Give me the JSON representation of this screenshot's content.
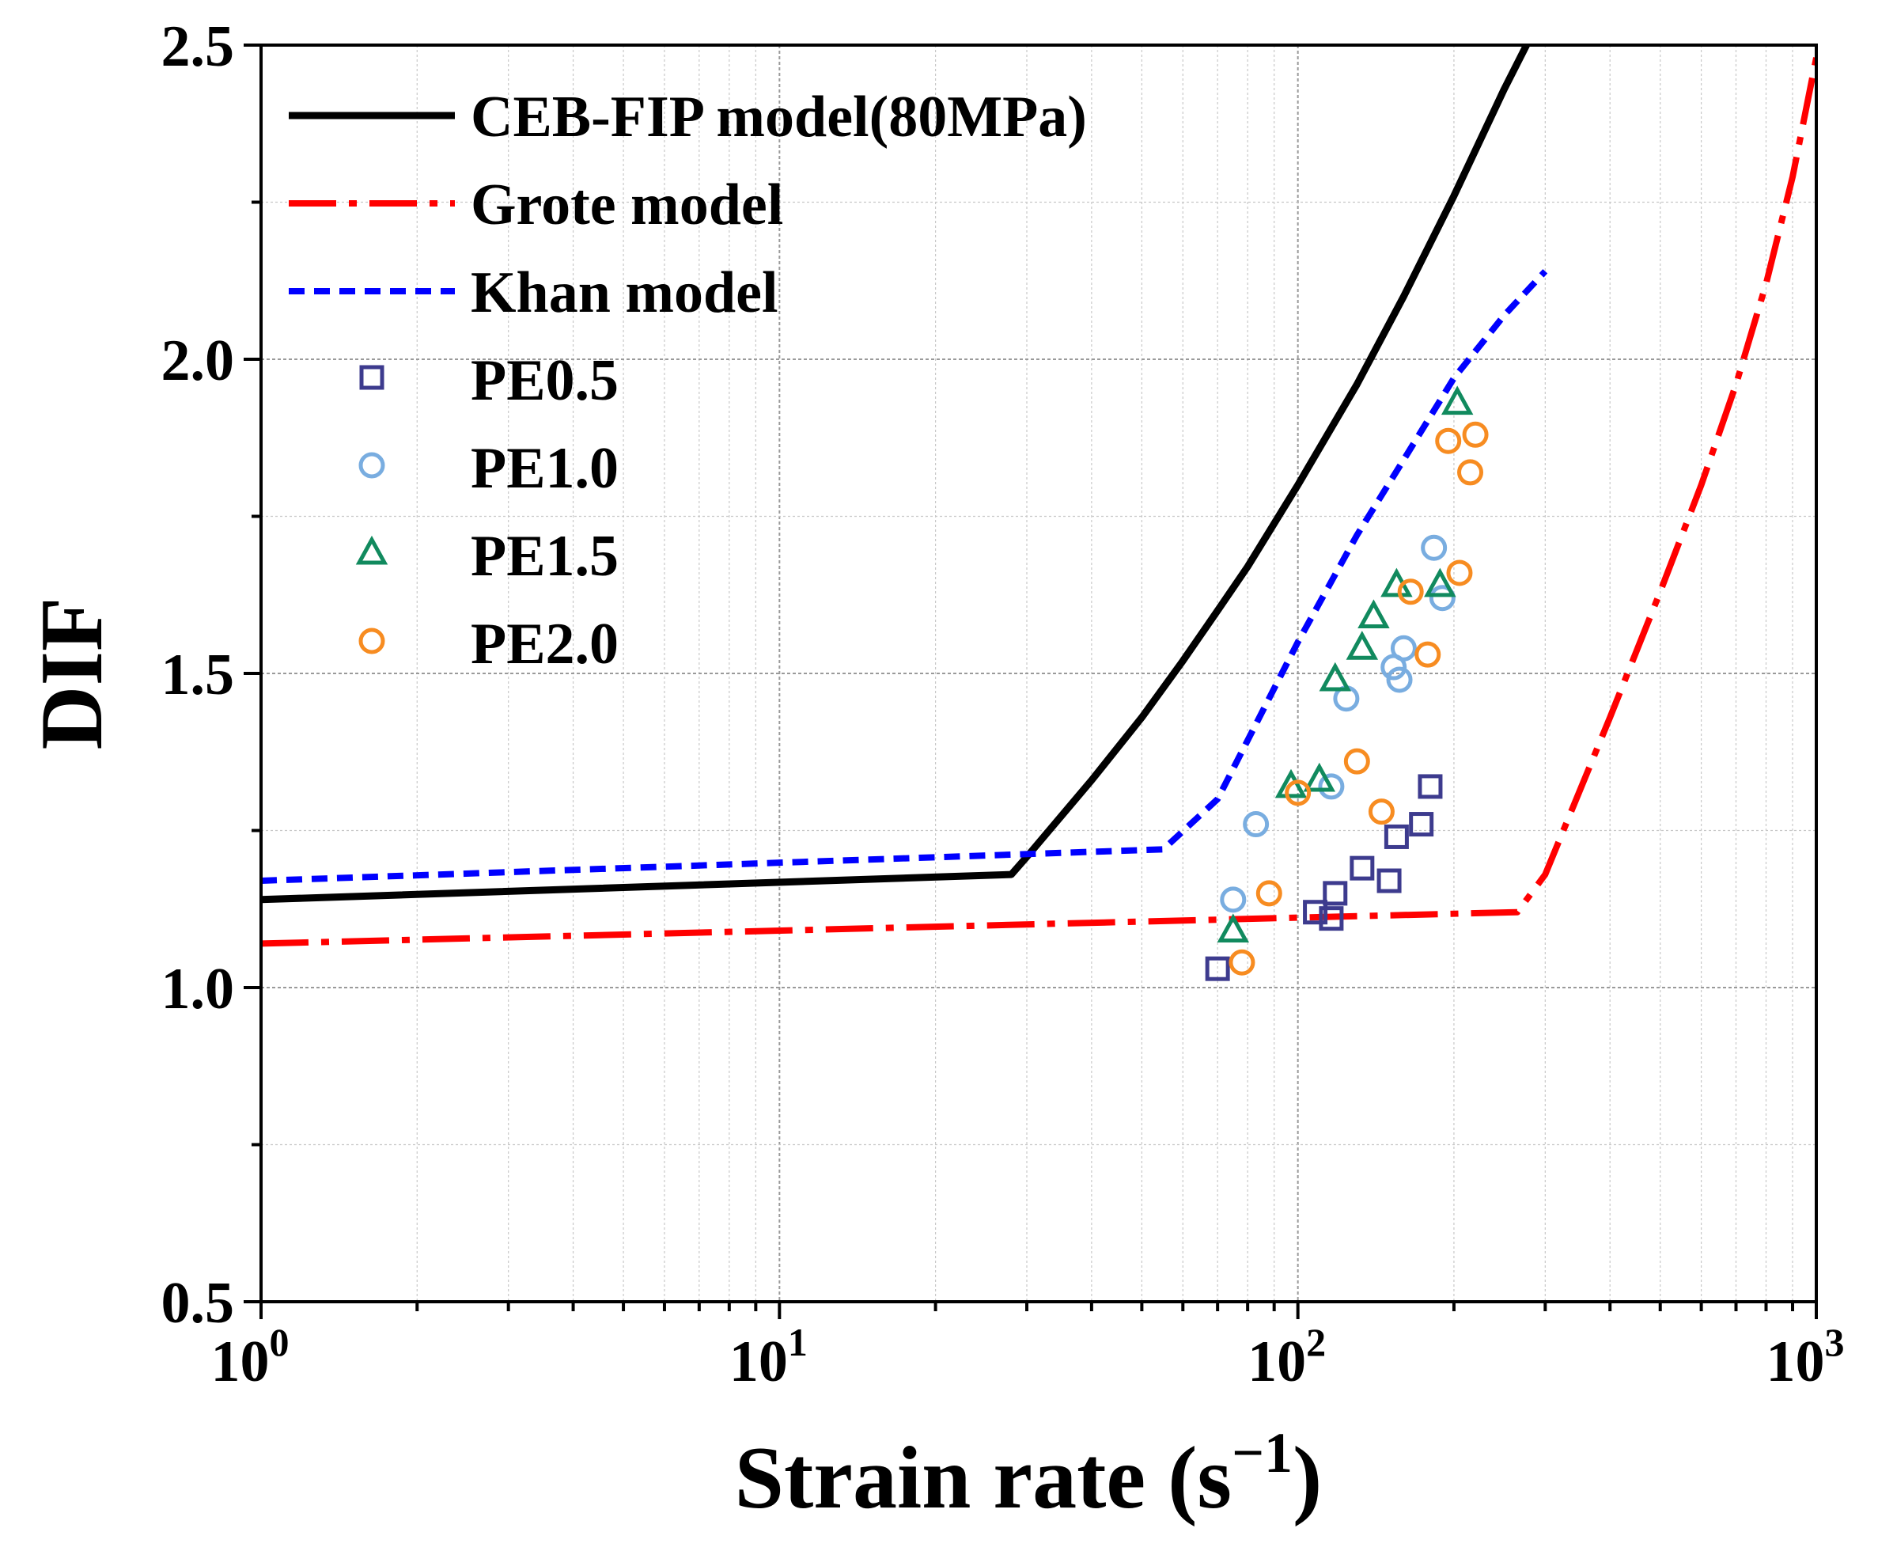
{
  "chart_data": {
    "type": "scatter",
    "xscale": "log",
    "xlim": [
      1,
      1000
    ],
    "ylim": [
      0.5,
      2.5
    ],
    "xlabel": "Strain rate (s",
    "xlabel_sup": "−1",
    "xlabel_end": ")",
    "ylabel": "DIF",
    "x_ticks": [
      {
        "base": "10",
        "exp": "0",
        "value": 1
      },
      {
        "base": "10",
        "exp": "1",
        "value": 10
      },
      {
        "base": "10",
        "exp": "2",
        "value": 100
      },
      {
        "base": "10",
        "exp": "3",
        "value": 1000
      }
    ],
    "y_ticks": [
      {
        "label": "0.5",
        "value": 0.5
      },
      {
        "label": "1.0",
        "value": 1.0
      },
      {
        "label": "1.5",
        "value": 1.5
      },
      {
        "label": "2.0",
        "value": 2.0
      },
      {
        "label": "2.5",
        "value": 2.5
      }
    ],
    "grid": true,
    "legend_position": "top-left",
    "lines": [
      {
        "name": "CEB-FIP model(80MPa)",
        "color": "#000000",
        "style": "solid",
        "points": [
          [
            1,
            1.14
          ],
          [
            28,
            1.18
          ],
          [
            30,
            1.208
          ],
          [
            40,
            1.33
          ],
          [
            50,
            1.43
          ],
          [
            60,
            1.52
          ],
          [
            70,
            1.6
          ],
          [
            80,
            1.67
          ],
          [
            100,
            1.8
          ],
          [
            130,
            1.96
          ],
          [
            160,
            2.1
          ],
          [
            200,
            2.26
          ],
          [
            250,
            2.43
          ],
          [
            280,
            2.51
          ]
        ]
      },
      {
        "name": "Grote model",
        "color": "#ff0000",
        "style": "dashdot",
        "points": [
          [
            1,
            1.07
          ],
          [
            265,
            1.12
          ],
          [
            300,
            1.18
          ],
          [
            400,
            1.43
          ],
          [
            500,
            1.63
          ],
          [
            600,
            1.8
          ],
          [
            700,
            1.96
          ],
          [
            800,
            2.12
          ],
          [
            900,
            2.29
          ],
          [
            1000,
            2.48
          ]
        ]
      },
      {
        "name": "Khan model",
        "color": "#0000ff",
        "style": "dashed",
        "points": [
          [
            1,
            1.17
          ],
          [
            55,
            1.22
          ],
          [
            70,
            1.3
          ],
          [
            100,
            1.55
          ],
          [
            130,
            1.72
          ],
          [
            160,
            1.84
          ],
          [
            200,
            1.97
          ],
          [
            250,
            2.07
          ],
          [
            300,
            2.14
          ]
        ]
      }
    ],
    "series": [
      {
        "name": "PE0.5",
        "marker": "square",
        "color": "#3d3b8e",
        "points": [
          [
            70,
            1.03
          ],
          [
            108,
            1.12
          ],
          [
            116,
            1.11
          ],
          [
            118,
            1.15
          ],
          [
            133,
            1.19
          ],
          [
            150,
            1.17
          ],
          [
            155,
            1.24
          ],
          [
            173,
            1.26
          ],
          [
            180,
            1.32
          ]
        ]
      },
      {
        "name": "PE1.0",
        "marker": "circle",
        "color": "#79ade0",
        "points": [
          [
            75,
            1.14
          ],
          [
            83,
            1.26
          ],
          [
            116,
            1.32
          ],
          [
            124,
            1.46
          ],
          [
            153,
            1.51
          ],
          [
            157,
            1.49
          ],
          [
            160,
            1.54
          ],
          [
            183,
            1.7
          ],
          [
            190,
            1.62
          ]
        ]
      },
      {
        "name": "PE1.5",
        "marker": "triangle",
        "color": "#118a5e",
        "points": [
          [
            75,
            1.09
          ],
          [
            97,
            1.32
          ],
          [
            110,
            1.33
          ],
          [
            118,
            1.49
          ],
          [
            133,
            1.54
          ],
          [
            140,
            1.59
          ],
          [
            155,
            1.64
          ],
          [
            188,
            1.64
          ],
          [
            203,
            1.93
          ]
        ]
      },
      {
        "name": "PE2.0",
        "marker": "circle",
        "color": "#f78c21",
        "points": [
          [
            78,
            1.04
          ],
          [
            88,
            1.15
          ],
          [
            100,
            1.31
          ],
          [
            130,
            1.36
          ],
          [
            145,
            1.28
          ],
          [
            165,
            1.63
          ],
          [
            178,
            1.53
          ],
          [
            195,
            1.87
          ],
          [
            205,
            1.66
          ],
          [
            215,
            1.82
          ],
          [
            220,
            1.88
          ]
        ]
      }
    ]
  }
}
